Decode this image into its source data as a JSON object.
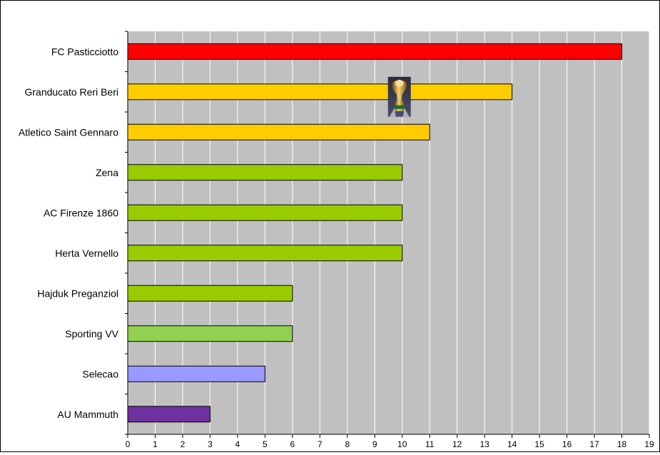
{
  "chart_data": {
    "type": "bar",
    "orientation": "horizontal",
    "title": "",
    "xlabel": "",
    "ylabel": "",
    "categories": [
      "FC Pasticciotto",
      "Granducato Reri Beri",
      "Atletico Saint Gennaro",
      "Zena",
      "AC Firenze 1860",
      "Herta Vernello",
      "Hajduk Preganziol",
      "Sporting VV",
      "Selecao",
      "AU Mammuth"
    ],
    "values": [
      18,
      14,
      11,
      10,
      10,
      10,
      6,
      6,
      5,
      3
    ],
    "colors": [
      "#ff0000",
      "#ffcc00",
      "#ffcc00",
      "#99cc00",
      "#99cc00",
      "#99cc00",
      "#99cc00",
      "#92d050",
      "#9999ff",
      "#7030a0"
    ],
    "xlim": [
      0,
      19
    ],
    "xticks": [
      0,
      1,
      2,
      3,
      4,
      5,
      6,
      7,
      8,
      9,
      10,
      11,
      12,
      13,
      14,
      15,
      16,
      17,
      18,
      19
    ],
    "grid": true,
    "plot_background": "#c0c0c0",
    "legend": "none",
    "annotations": [
      {
        "type": "trophy-icon",
        "category": "Granducato Reri Beri",
        "x": 10
      }
    ]
  }
}
